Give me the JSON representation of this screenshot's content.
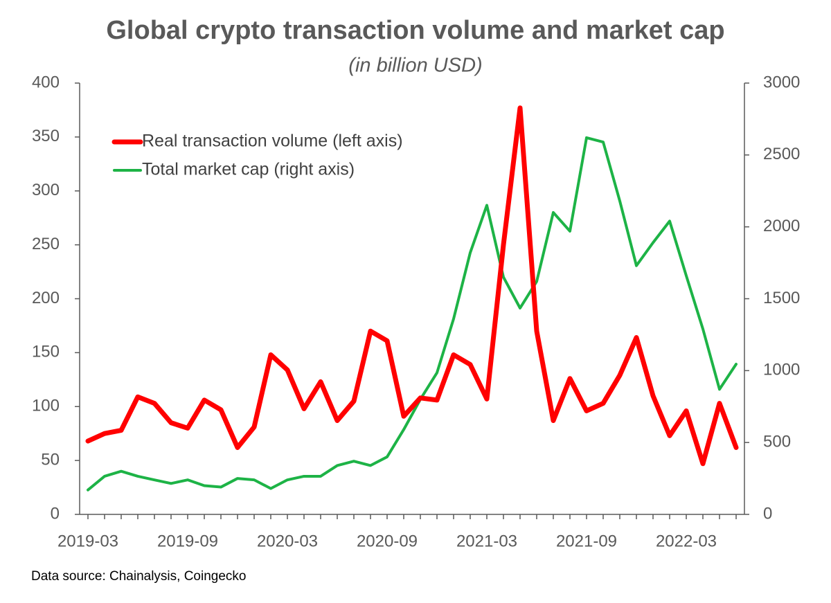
{
  "chart_data": {
    "type": "line",
    "title": "Global crypto transaction volume and market cap",
    "subtitle": "(in billion USD)",
    "source": "Data source: Chainalysis, Coingecko",
    "categories": [
      "2019-03",
      null,
      null,
      null,
      null,
      null,
      "2019-09",
      null,
      null,
      null,
      null,
      null,
      "2020-03",
      null,
      null,
      null,
      null,
      null,
      "2020-09",
      null,
      null,
      null,
      null,
      null,
      "2021-03",
      null,
      null,
      null,
      null,
      null,
      "2021-09",
      null,
      null,
      null,
      null,
      null,
      "2022-03",
      null,
      null,
      null
    ],
    "series": [
      {
        "name": "Real transaction volume (left axis)",
        "color": "#ff0000",
        "axis": "y",
        "values": [
          68,
          75,
          78,
          109,
          103,
          85,
          80,
          106,
          97,
          62,
          81,
          148,
          134,
          98,
          123,
          87,
          105,
          170,
          161,
          91,
          108,
          106,
          148,
          139,
          107,
          250,
          377,
          170,
          87,
          126,
          96,
          103,
          129,
          164,
          110,
          73,
          96,
          47,
          103,
          62
        ]
      },
      {
        "name": "Total market cap (right axis)",
        "color": "#1db346",
        "axis": "y2",
        "values": [
          170,
          265,
          300,
          265,
          240,
          215,
          240,
          200,
          190,
          250,
          240,
          180,
          240,
          265,
          265,
          340,
          370,
          340,
          400,
          590,
          800,
          985,
          1360,
          1820,
          2150,
          1650,
          1435,
          1620,
          2100,
          1970,
          2620,
          2590,
          2180,
          1730,
          1890,
          2040,
          1660,
          1290,
          870,
          1045
        ]
      }
    ],
    "ylim": [
      0,
      400
    ],
    "yticks": [
      0,
      50,
      100,
      150,
      200,
      250,
      300,
      350,
      400
    ],
    "y2lim": [
      0,
      3000
    ],
    "y2ticks": [
      0,
      500,
      1000,
      1500,
      2000,
      2500,
      3000
    ],
    "legend": "upper left"
  }
}
